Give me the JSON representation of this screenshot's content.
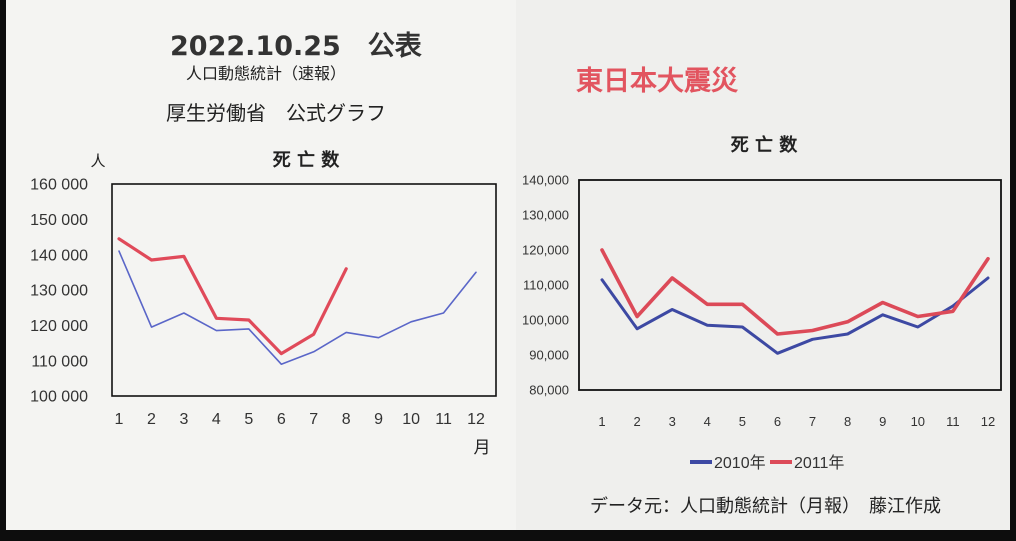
{
  "left": {
    "date_line": "2022.10.25　公表",
    "subtitle": "人口動態統計（速報）",
    "source": "厚生労働省　公式グラフ"
  },
  "right": {
    "headline": "東日本大震災",
    "credit": "データ元：人口動態統計（月報）　藤江作成"
  },
  "colors": {
    "blue": "#3d49a3",
    "red": "#dc4a58",
    "headline": "#e2545f"
  },
  "chart_data": [
    {
      "type": "line",
      "title": "死 亡 数",
      "ylabel": "人",
      "xlabel": "月",
      "categories": [
        "1",
        "2",
        "3",
        "4",
        "5",
        "6",
        "7",
        "8",
        "9",
        "10",
        "11",
        "12"
      ],
      "ylim": [
        100000,
        160000
      ],
      "yticks": [
        100000,
        110000,
        120000,
        130000,
        140000,
        150000,
        160000
      ],
      "ytick_labels": [
        "100 000",
        "110 000",
        "120 000",
        "130 000",
        "140 000",
        "150 000",
        "160 000"
      ],
      "grid": false,
      "series": [
        {
          "color": "#5a66c8",
          "values": [
            141000,
            119500,
            123500,
            118500,
            119000,
            109000,
            112500,
            118000,
            116500,
            121000,
            123500,
            135000
          ]
        },
        {
          "color": "#e04a5a",
          "values": [
            144500,
            138500,
            139500,
            122000,
            121500,
            112000,
            117500,
            136000,
            null,
            null,
            null,
            null
          ]
        }
      ]
    },
    {
      "type": "line",
      "title": "死 亡 数",
      "categories": [
        "1",
        "2",
        "3",
        "4",
        "5",
        "6",
        "7",
        "8",
        "9",
        "10",
        "11",
        "12"
      ],
      "ylim": [
        80000,
        140000
      ],
      "yticks": [
        80000,
        90000,
        100000,
        110000,
        120000,
        130000,
        140000
      ],
      "ytick_labels": [
        "80,000",
        "90,000",
        "100,000",
        "110,000",
        "120,000",
        "130,000",
        "140,000"
      ],
      "grid": false,
      "legend": "bottom",
      "series": [
        {
          "name": "2010年",
          "color": "#3d49a3",
          "values": [
            111500,
            97500,
            103000,
            98500,
            98000,
            90500,
            94500,
            96000,
            101500,
            98000,
            104000,
            112000
          ]
        },
        {
          "name": "2011年",
          "color": "#dc4a58",
          "values": [
            120000,
            101000,
            112000,
            104500,
            104500,
            96000,
            97000,
            99500,
            105000,
            101000,
            102500,
            117500
          ]
        }
      ]
    }
  ]
}
